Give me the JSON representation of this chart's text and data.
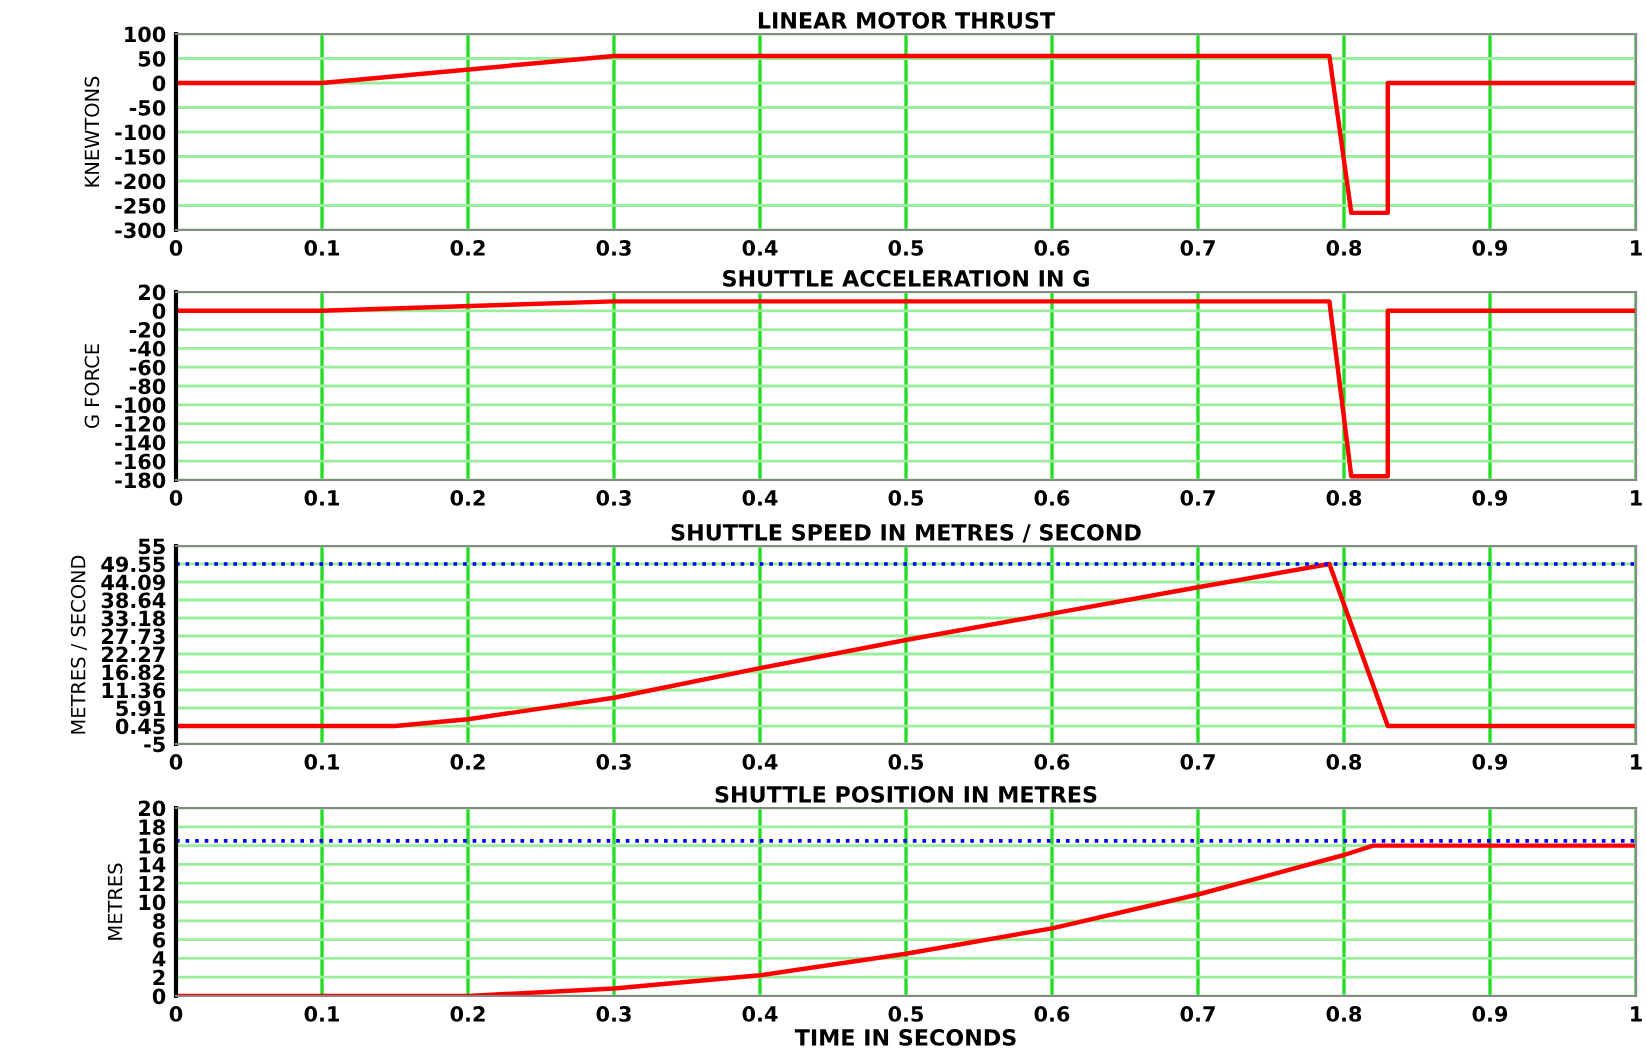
{
  "chart_data": [
    {
      "type": "line",
      "title": "LINEAR MOTOR THRUST",
      "ylabel": "KNEWTONS",
      "x": [
        0,
        0.1,
        0.3,
        0.79,
        0.805,
        0.83,
        0.83,
        1
      ],
      "series": [
        {
          "color": "#ff0000",
          "values": [
            0,
            0,
            55,
            55,
            -265,
            -265,
            0,
            0
          ]
        }
      ],
      "xlim": [
        0,
        1
      ],
      "xticks": [
        0,
        0.1,
        0.2,
        0.3,
        0.4,
        0.5,
        0.6,
        0.7,
        0.8,
        0.9,
        1
      ],
      "ylim": [
        -300,
        100
      ],
      "yticks": [
        100,
        50,
        0,
        -50,
        -100,
        -150,
        -200,
        -250,
        -300
      ],
      "grid": true,
      "line_style": "solid"
    },
    {
      "type": "line",
      "title": "SHUTTLE ACCELERATION IN G",
      "ylabel": "G FORCE",
      "x": [
        0,
        0.1,
        0.3,
        0.79,
        0.805,
        0.83,
        0.83,
        1
      ],
      "series": [
        {
          "color": "#ff0000",
          "values": [
            0,
            0,
            10,
            10,
            -176,
            -176,
            0,
            0
          ]
        }
      ],
      "xlim": [
        0,
        1
      ],
      "xticks": [
        0,
        0.1,
        0.2,
        0.3,
        0.4,
        0.5,
        0.6,
        0.7,
        0.8,
        0.9,
        1
      ],
      "ylim": [
        -180,
        20
      ],
      "yticks": [
        20,
        0,
        -20,
        -40,
        -60,
        -80,
        -100,
        -120,
        -140,
        -160,
        -180
      ],
      "grid": true,
      "line_style": "solid"
    },
    {
      "type": "line",
      "title": "SHUTTLE SPEED IN METRES / SECOND",
      "ylabel": "METRES / SECOND",
      "x": [
        0,
        0.15,
        0.2,
        0.3,
        0.4,
        0.5,
        0.6,
        0.7,
        0.79,
        0.83,
        1
      ],
      "series": [
        {
          "color": "#ff0000",
          "values": [
            0.45,
            0.45,
            2.5,
            9,
            18,
            26.5,
            34.5,
            42.5,
            49.55,
            0.45,
            0.45
          ]
        }
      ],
      "ref_lines": [
        {
          "axis": "y",
          "value": 49.55,
          "color": "#0000ff",
          "line_style": "dotted"
        }
      ],
      "xlim": [
        0,
        1
      ],
      "xticks": [
        0,
        0.1,
        0.2,
        0.3,
        0.4,
        0.5,
        0.6,
        0.7,
        0.8,
        0.9,
        1
      ],
      "ylim": [
        -5,
        55
      ],
      "yticks": [
        55,
        49.55,
        44.09,
        38.64,
        33.18,
        27.73,
        22.27,
        16.82,
        11.36,
        5.91,
        0.45,
        -5
      ],
      "grid": true,
      "line_style": "solid"
    },
    {
      "type": "line",
      "title": "SHUTTLE POSITION IN METRES",
      "ylabel": "METRES",
      "xlabel": "TIME IN SECONDS",
      "x": [
        0,
        0.2,
        0.3,
        0.4,
        0.5,
        0.6,
        0.7,
        0.8,
        0.82,
        1
      ],
      "series": [
        {
          "color": "#ff0000",
          "values": [
            0,
            0,
            0.8,
            2.2,
            4.5,
            7.2,
            10.8,
            15,
            16,
            16
          ]
        }
      ],
      "ref_lines": [
        {
          "axis": "y",
          "value": 16.5,
          "color": "#0000ff",
          "line_style": "dotted"
        }
      ],
      "xlim": [
        0,
        1
      ],
      "xticks": [
        0,
        0.1,
        0.2,
        0.3,
        0.4,
        0.5,
        0.6,
        0.7,
        0.8,
        0.9,
        1
      ],
      "ylim": [
        0,
        20
      ],
      "yticks": [
        20,
        18,
        16,
        14,
        12,
        10,
        8,
        6,
        4,
        2,
        0
      ],
      "grid": true,
      "line_style": "solid"
    }
  ]
}
